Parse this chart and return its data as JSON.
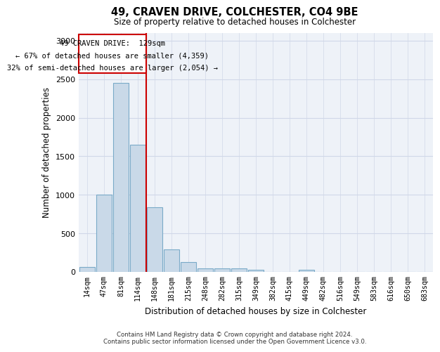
{
  "title1": "49, CRAVEN DRIVE, COLCHESTER, CO4 9BE",
  "title2": "Size of property relative to detached houses in Colchester",
  "xlabel": "Distribution of detached houses by size in Colchester",
  "ylabel": "Number of detached properties",
  "footnote1": "Contains HM Land Registry data © Crown copyright and database right 2024.",
  "footnote2": "Contains public sector information licensed under the Open Government Licence v3.0.",
  "bin_labels": [
    "14sqm",
    "47sqm",
    "81sqm",
    "114sqm",
    "148sqm",
    "181sqm",
    "215sqm",
    "248sqm",
    "282sqm",
    "315sqm",
    "349sqm",
    "382sqm",
    "415sqm",
    "449sqm",
    "482sqm",
    "516sqm",
    "549sqm",
    "583sqm",
    "616sqm",
    "650sqm",
    "683sqm"
  ],
  "bar_values": [
    60,
    1000,
    2450,
    1650,
    840,
    290,
    130,
    50,
    50,
    50,
    30,
    0,
    0,
    30,
    0,
    0,
    0,
    0,
    0,
    0,
    0
  ],
  "bar_color": "#c9d9e8",
  "bar_edge_color": "#7aaac8",
  "grid_color": "#d0d8e8",
  "vline_color": "#cc0000",
  "annotation_line1": "49 CRAVEN DRIVE:  129sqm",
  "annotation_line2": "← 67% of detached houses are smaller (4,359)",
  "annotation_line3": "32% of semi-detached houses are larger (2,054) →",
  "annotation_box_color": "#cc0000",
  "ylim": [
    0,
    3100
  ],
  "yticks": [
    0,
    500,
    1000,
    1500,
    2000,
    2500,
    3000
  ],
  "background_color": "#eef2f8"
}
